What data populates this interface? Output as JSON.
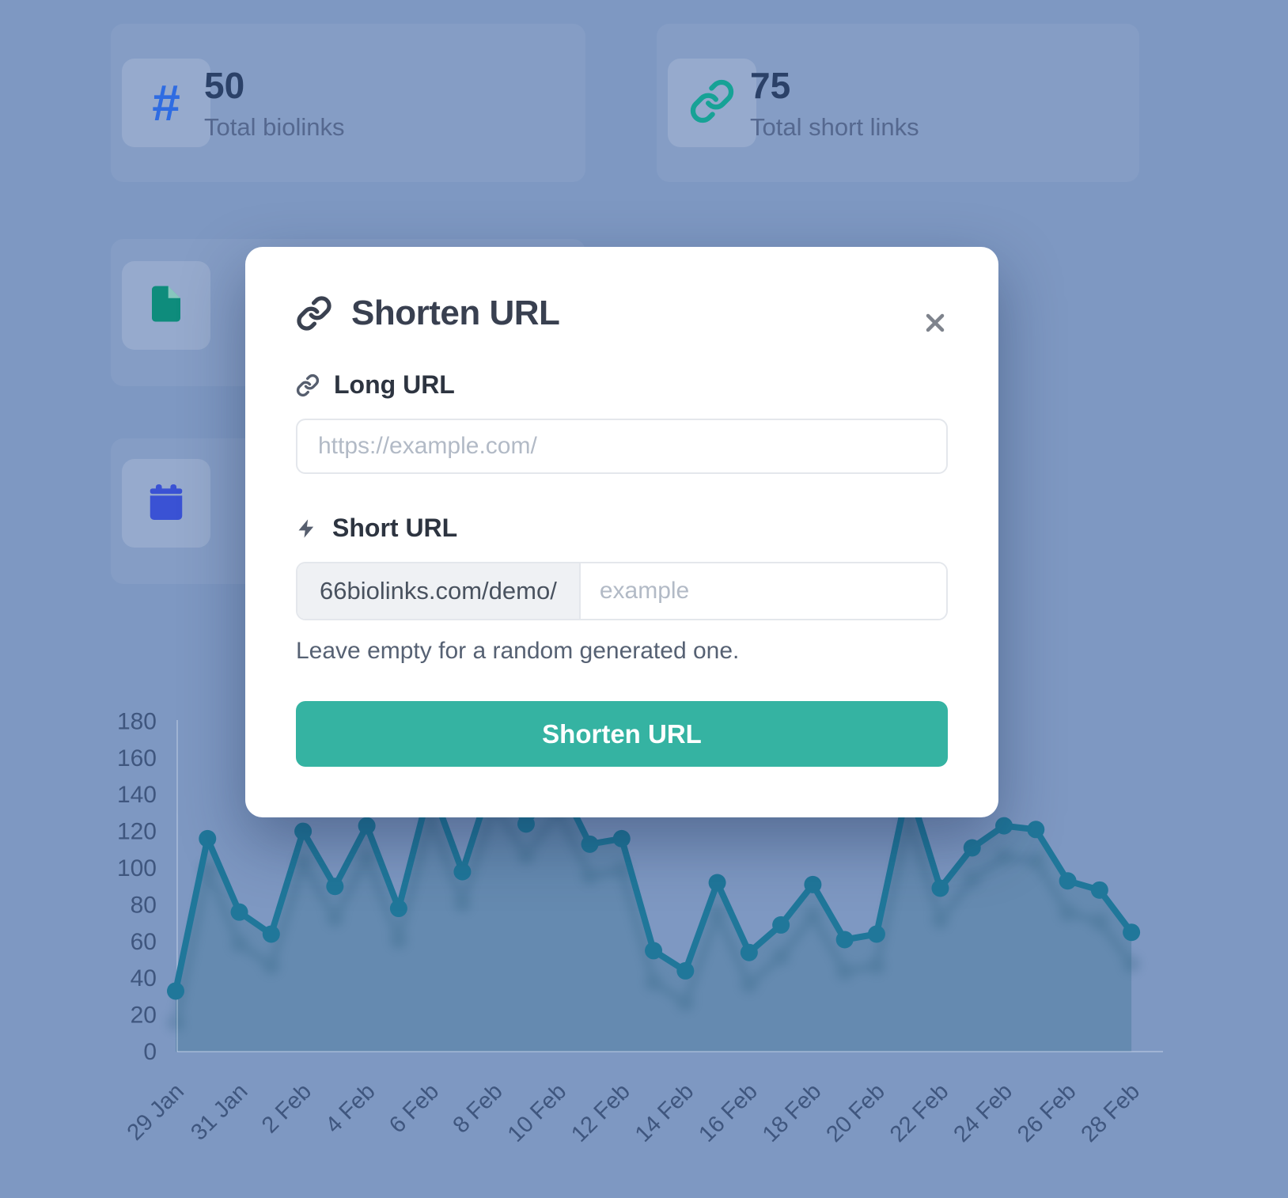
{
  "theme": {
    "backdrop": "#7e98c2",
    "card_tint": "rgba(255,255,255,0.055)",
    "tile_tint": "rgba(255,255,255,0.14)",
    "accent_teal": "#35b3a2",
    "hash_blue": "#2f6ce2",
    "link_teal": "#17a296",
    "file_green": "#0e8c7c",
    "calendar_blue": "#3a52d4"
  },
  "stats": [
    {
      "value": "50",
      "label": "Total biolinks",
      "icon": "hash-icon"
    },
    {
      "value": "75",
      "label": "Total short links",
      "icon": "link-icon"
    },
    {
      "icon": "file-icon"
    },
    {
      "icon": "calendar-icon"
    }
  ],
  "modal": {
    "title": "Shorten URL",
    "long_url_label": "Long URL",
    "long_url_placeholder": "https://example.com/",
    "short_url_label": "Short URL",
    "short_url_prefix": "66biolinks.com/demo/",
    "short_url_placeholder": "example",
    "helper_text": "Leave empty for a random generated one.",
    "submit_label": "Shorten URL"
  },
  "chart_data": {
    "type": "line",
    "x": [
      "29 Jan",
      "30 Jan",
      "31 Jan",
      "1 Feb",
      "2 Feb",
      "3 Feb",
      "4 Feb",
      "5 Feb",
      "6 Feb",
      "7 Feb",
      "8 Feb",
      "9 Feb",
      "10 Feb",
      "11 Feb",
      "12 Feb",
      "13 Feb",
      "14 Feb",
      "15 Feb",
      "16 Feb",
      "17 Feb",
      "18 Feb",
      "19 Feb",
      "20 Feb",
      "21 Feb",
      "22 Feb",
      "23 Feb",
      "24 Feb",
      "25 Feb",
      "26 Feb",
      "27 Feb",
      "28 Feb"
    ],
    "values": [
      33,
      116,
      76,
      64,
      120,
      90,
      123,
      78,
      145,
      98,
      152,
      124,
      148,
      113,
      116,
      55,
      44,
      92,
      54,
      69,
      91,
      61,
      64,
      145,
      89,
      111,
      123,
      121,
      93,
      88,
      65
    ],
    "tick_labels": [
      "29 Jan",
      "31 Jan",
      "2 Feb",
      "4 Feb",
      "6 Feb",
      "8 Feb",
      "10 Feb",
      "12 Feb",
      "14 Feb",
      "16 Feb",
      "18 Feb",
      "20 Feb",
      "22 Feb",
      "24 Feb",
      "26 Feb",
      "28 Feb"
    ],
    "tick_every": 2,
    "yticks": [
      0,
      20,
      40,
      60,
      80,
      100,
      120,
      140,
      160,
      180
    ],
    "ylim": [
      0,
      180
    ],
    "grid": false,
    "legend": false,
    "line_color": "#20779a",
    "fill_color": "rgba(26,95,122,0.25)",
    "shadow_color": "#14506b",
    "axis_label_color": "#3f567e",
    "point_radius": 11
  }
}
